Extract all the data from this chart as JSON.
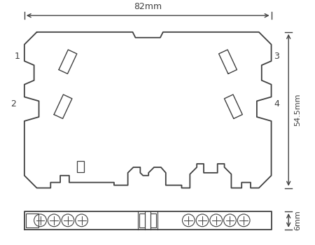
{
  "bg_color": "#ffffff",
  "line_color": "#404040",
  "dim_color": "#404040",
  "fig_width": 4.5,
  "fig_height": 3.5,
  "dpi": 100,
  "dim_82mm": "82mm",
  "dim_54_5mm": "54.5mm",
  "dim_6mm": "6mm"
}
